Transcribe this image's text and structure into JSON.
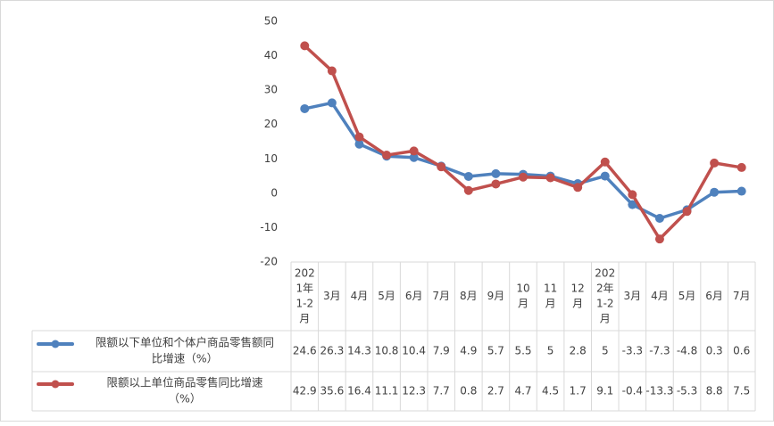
{
  "chart_data": {
    "type": "line",
    "title": "",
    "ylim": [
      -20,
      50
    ],
    "yticks": [
      -20,
      -10,
      0,
      10,
      20,
      30,
      40,
      50
    ],
    "ytick_labels": [
      "-20",
      "-10",
      "0",
      "10",
      "20",
      "30",
      "40",
      "50"
    ],
    "grid": false,
    "legend": "data-table-left",
    "categories": [
      [
        "202",
        "1年",
        "1-2",
        "月"
      ],
      [
        "3月"
      ],
      [
        "4月"
      ],
      [
        "5月"
      ],
      [
        "6月"
      ],
      [
        "7月"
      ],
      [
        "8月"
      ],
      [
        "9月"
      ],
      [
        "10",
        "月"
      ],
      [
        "11",
        "月"
      ],
      [
        "12",
        "月"
      ],
      [
        "202",
        "2年",
        "1-2",
        "月"
      ],
      [
        "3月"
      ],
      [
        "4月"
      ],
      [
        "5月"
      ],
      [
        "6月"
      ],
      [
        "7月"
      ]
    ],
    "series": [
      {
        "name": [
          "限额以下单位和个体户商品零售额同",
          "比增速（%）"
        ],
        "color": "#4f81bd",
        "values": [
          24.6,
          26.3,
          14.3,
          10.8,
          10.4,
          7.9,
          4.9,
          5.7,
          5.5,
          5,
          2.8,
          5,
          -3.3,
          -7.3,
          -4.8,
          0.3,
          0.6
        ],
        "labels": [
          "24.6",
          "26.3",
          "14.3",
          "10.8",
          "10.4",
          "7.9",
          "4.9",
          "5.7",
          "5.5",
          "5",
          "2.8",
          "5",
          "-3.3",
          "-7.3",
          "-4.8",
          "0.3",
          "0.6"
        ]
      },
      {
        "name": [
          "限额以上单位商品零售同比增速",
          "（%）"
        ],
        "color": "#c0504d",
        "values": [
          42.9,
          35.6,
          16.4,
          11.1,
          12.3,
          7.7,
          0.8,
          2.7,
          4.7,
          4.5,
          1.7,
          9.1,
          -0.4,
          -13.3,
          -5.3,
          8.8,
          7.5
        ],
        "labels": [
          "42.9",
          "35.6",
          "16.4",
          "11.1",
          "12.3",
          "7.7",
          "0.8",
          "2.7",
          "4.7",
          "4.5",
          "1.7",
          "9.1",
          "-0.4",
          "-13.3",
          "-5.3",
          "8.8",
          "7.5"
        ]
      }
    ]
  }
}
